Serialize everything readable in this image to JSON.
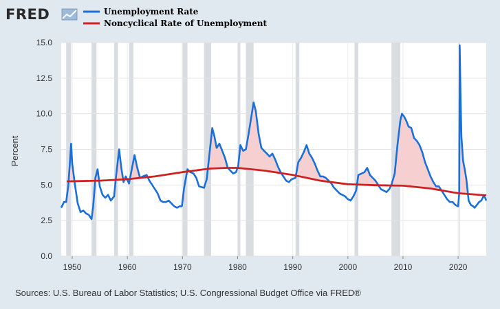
{
  "brand": {
    "logo_text": "FRED",
    "logo_icon": "chart-line-icon"
  },
  "footer": {
    "source": "Sources: U.S. Bureau of Labor Statistics; U.S. Congressional Budget Office via FRED®"
  },
  "colors": {
    "unemployment": "#1a6fd8",
    "noncyclical": "#cc2222",
    "recession": "#d9dde2",
    "gap_fill": "#f6d0d0",
    "page_bg": "#e1e9f0",
    "plot_bg": "#ffffff"
  },
  "chart_data": {
    "type": "line",
    "title": "",
    "xlabel": "",
    "ylabel": "Percent",
    "xlim": [
      1948.0,
      2025.1
    ],
    "ylim": [
      0,
      15
    ],
    "x_ticks": [
      1950,
      1960,
      1970,
      1980,
      1990,
      2000,
      2010,
      2020
    ],
    "y_ticks": [
      0.0,
      2.5,
      5.0,
      7.5,
      10.0,
      12.5,
      15.0
    ],
    "y_tick_labels": [
      "0.0",
      "2.5",
      "5.0",
      "7.5",
      "10.0",
      "12.5",
      "15.0"
    ],
    "legend_position": "top-left",
    "grid": true,
    "recessions": [
      [
        1948.9,
        1949.8
      ],
      [
        1953.5,
        1954.4
      ],
      [
        1957.6,
        1958.3
      ],
      [
        1960.3,
        1961.1
      ],
      [
        1969.9,
        1970.9
      ],
      [
        1973.9,
        1975.2
      ],
      [
        1980.0,
        1980.5
      ],
      [
        1981.5,
        1982.9
      ],
      [
        1990.5,
        1991.2
      ],
      [
        2001.2,
        2001.9
      ],
      [
        2007.9,
        2009.5
      ],
      [
        2020.1,
        2020.3
      ]
    ],
    "series": [
      {
        "name": "Unemployment Rate",
        "color": "#1a6fd8",
        "points": [
          [
            1948.0,
            3.4
          ],
          [
            1948.5,
            3.8
          ],
          [
            1948.9,
            3.8
          ],
          [
            1949.3,
            5.0
          ],
          [
            1949.6,
            6.7
          ],
          [
            1949.8,
            7.9
          ],
          [
            1950.0,
            6.5
          ],
          [
            1950.5,
            5.0
          ],
          [
            1951.0,
            3.7
          ],
          [
            1951.5,
            3.1
          ],
          [
            1952.0,
            3.2
          ],
          [
            1952.5,
            3.0
          ],
          [
            1953.0,
            2.9
          ],
          [
            1953.5,
            2.6
          ],
          [
            1953.8,
            3.5
          ],
          [
            1954.2,
            5.5
          ],
          [
            1954.6,
            6.1
          ],
          [
            1955.0,
            4.9
          ],
          [
            1955.5,
            4.3
          ],
          [
            1956.0,
            4.1
          ],
          [
            1956.5,
            4.3
          ],
          [
            1957.0,
            3.9
          ],
          [
            1957.6,
            4.2
          ],
          [
            1958.0,
            5.8
          ],
          [
            1958.5,
            7.5
          ],
          [
            1958.9,
            6.2
          ],
          [
            1959.3,
            5.2
          ],
          [
            1959.7,
            5.6
          ],
          [
            1960.3,
            5.1
          ],
          [
            1960.8,
            6.1
          ],
          [
            1961.3,
            7.1
          ],
          [
            1961.8,
            6.2
          ],
          [
            1962.3,
            5.5
          ],
          [
            1962.8,
            5.6
          ],
          [
            1963.5,
            5.7
          ],
          [
            1964.0,
            5.3
          ],
          [
            1964.5,
            5.0
          ],
          [
            1965.0,
            4.7
          ],
          [
            1965.5,
            4.4
          ],
          [
            1966.0,
            3.9
          ],
          [
            1966.5,
            3.8
          ],
          [
            1967.0,
            3.8
          ],
          [
            1967.5,
            3.9
          ],
          [
            1968.0,
            3.7
          ],
          [
            1968.5,
            3.5
          ],
          [
            1969.0,
            3.4
          ],
          [
            1969.5,
            3.5
          ],
          [
            1969.9,
            3.5
          ],
          [
            1970.3,
            4.8
          ],
          [
            1970.9,
            6.1
          ],
          [
            1971.4,
            5.9
          ],
          [
            1972.0,
            5.8
          ],
          [
            1972.5,
            5.5
          ],
          [
            1973.0,
            4.9
          ],
          [
            1973.9,
            4.8
          ],
          [
            1974.4,
            5.4
          ],
          [
            1974.9,
            7.2
          ],
          [
            1975.4,
            9.0
          ],
          [
            1975.8,
            8.4
          ],
          [
            1976.2,
            7.6
          ],
          [
            1976.7,
            7.9
          ],
          [
            1977.2,
            7.4
          ],
          [
            1977.7,
            6.9
          ],
          [
            1978.2,
            6.2
          ],
          [
            1978.7,
            6.0
          ],
          [
            1979.2,
            5.8
          ],
          [
            1979.7,
            5.9
          ],
          [
            1980.1,
            6.3
          ],
          [
            1980.5,
            7.8
          ],
          [
            1981.0,
            7.4
          ],
          [
            1981.5,
            7.5
          ],
          [
            1982.0,
            8.6
          ],
          [
            1982.5,
            9.8
          ],
          [
            1982.9,
            10.8
          ],
          [
            1983.3,
            10.2
          ],
          [
            1983.8,
            8.6
          ],
          [
            1984.3,
            7.6
          ],
          [
            1984.8,
            7.4
          ],
          [
            1985.3,
            7.2
          ],
          [
            1985.8,
            7.0
          ],
          [
            1986.3,
            7.2
          ],
          [
            1986.8,
            6.8
          ],
          [
            1987.3,
            6.3
          ],
          [
            1987.8,
            5.9
          ],
          [
            1988.3,
            5.6
          ],
          [
            1988.8,
            5.3
          ],
          [
            1989.3,
            5.2
          ],
          [
            1989.8,
            5.4
          ],
          [
            1990.5,
            5.5
          ],
          [
            1991.0,
            6.6
          ],
          [
            1991.5,
            6.9
          ],
          [
            1992.0,
            7.3
          ],
          [
            1992.5,
            7.8
          ],
          [
            1993.0,
            7.2
          ],
          [
            1993.5,
            6.9
          ],
          [
            1994.0,
            6.5
          ],
          [
            1994.5,
            6.0
          ],
          [
            1995.0,
            5.6
          ],
          [
            1995.5,
            5.6
          ],
          [
            1996.0,
            5.5
          ],
          [
            1996.5,
            5.3
          ],
          [
            1997.0,
            5.1
          ],
          [
            1997.5,
            4.8
          ],
          [
            1998.0,
            4.6
          ],
          [
            1998.5,
            4.4
          ],
          [
            1999.0,
            4.3
          ],
          [
            1999.5,
            4.2
          ],
          [
            2000.0,
            4.0
          ],
          [
            2000.5,
            3.9
          ],
          [
            2001.0,
            4.2
          ],
          [
            2001.5,
            4.6
          ],
          [
            2001.9,
            5.7
          ],
          [
            2002.5,
            5.8
          ],
          [
            2003.0,
            5.9
          ],
          [
            2003.5,
            6.2
          ],
          [
            2004.0,
            5.7
          ],
          [
            2004.5,
            5.5
          ],
          [
            2005.0,
            5.3
          ],
          [
            2005.5,
            5.0
          ],
          [
            2006.0,
            4.7
          ],
          [
            2006.5,
            4.6
          ],
          [
            2007.0,
            4.5
          ],
          [
            2007.5,
            4.7
          ],
          [
            2007.9,
            5.0
          ],
          [
            2008.5,
            5.8
          ],
          [
            2009.0,
            7.8
          ],
          [
            2009.5,
            9.5
          ],
          [
            2009.8,
            10.0
          ],
          [
            2010.2,
            9.8
          ],
          [
            2010.6,
            9.5
          ],
          [
            2011.0,
            9.1
          ],
          [
            2011.5,
            9.0
          ],
          [
            2012.0,
            8.3
          ],
          [
            2012.5,
            8.1
          ],
          [
            2013.0,
            7.8
          ],
          [
            2013.5,
            7.3
          ],
          [
            2014.0,
            6.6
          ],
          [
            2014.5,
            6.1
          ],
          [
            2015.0,
            5.6
          ],
          [
            2015.5,
            5.2
          ],
          [
            2016.0,
            4.9
          ],
          [
            2016.5,
            4.9
          ],
          [
            2017.0,
            4.6
          ],
          [
            2017.5,
            4.3
          ],
          [
            2018.0,
            4.0
          ],
          [
            2018.5,
            3.8
          ],
          [
            2019.0,
            3.8
          ],
          [
            2019.5,
            3.6
          ],
          [
            2020.0,
            3.5
          ],
          [
            2020.2,
            4.4
          ],
          [
            2020.28,
            14.8
          ],
          [
            2020.45,
            11.1
          ],
          [
            2020.6,
            8.4
          ],
          [
            2020.9,
            6.7
          ],
          [
            2021.2,
            6.1
          ],
          [
            2021.5,
            5.4
          ],
          [
            2021.9,
            3.9
          ],
          [
            2022.3,
            3.6
          ],
          [
            2022.7,
            3.5
          ],
          [
            2023.0,
            3.4
          ],
          [
            2023.4,
            3.6
          ],
          [
            2023.8,
            3.8
          ],
          [
            2024.2,
            3.9
          ],
          [
            2024.6,
            4.2
          ],
          [
            2024.9,
            4.1
          ],
          [
            2025.1,
            3.9
          ]
        ]
      },
      {
        "name": "Noncyclical Rate of Unemployment",
        "color": "#cc2222",
        "points": [
          [
            1949.0,
            5.25
          ],
          [
            1955.0,
            5.3
          ],
          [
            1960.0,
            5.4
          ],
          [
            1965.0,
            5.6
          ],
          [
            1970.0,
            5.9
          ],
          [
            1975.0,
            6.15
          ],
          [
            1978.0,
            6.2
          ],
          [
            1980.0,
            6.2
          ],
          [
            1985.0,
            6.0
          ],
          [
            1990.0,
            5.7
          ],
          [
            1995.0,
            5.3
          ],
          [
            2000.0,
            5.05
          ],
          [
            2005.0,
            4.98
          ],
          [
            2010.0,
            4.95
          ],
          [
            2015.0,
            4.75
          ],
          [
            2020.0,
            4.42
          ],
          [
            2025.1,
            4.27
          ]
        ]
      }
    ]
  }
}
